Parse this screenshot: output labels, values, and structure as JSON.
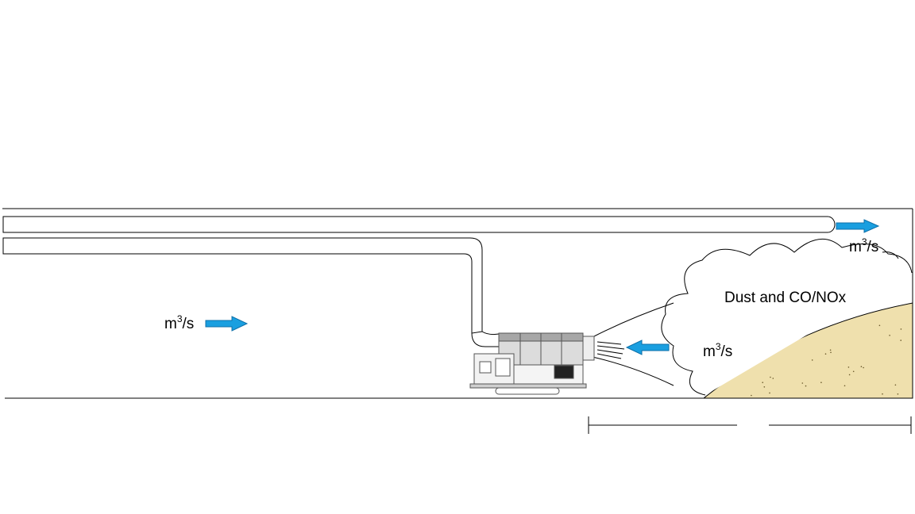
{
  "labels": {
    "flow_unit": "m",
    "flow_exp": "3",
    "flow_tail": "/s",
    "cloud": "Dust and CO/NOx"
  },
  "colors": {
    "arrow": "#1a9fe0",
    "arrow_stroke": "#0d6fa8",
    "muck_pile": "#efe0ad",
    "line": "#000000",
    "machine": "#777777"
  },
  "icons": {
    "flow_arrow": "right-arrow-icon",
    "intake_arrow": "left-arrow-icon"
  }
}
